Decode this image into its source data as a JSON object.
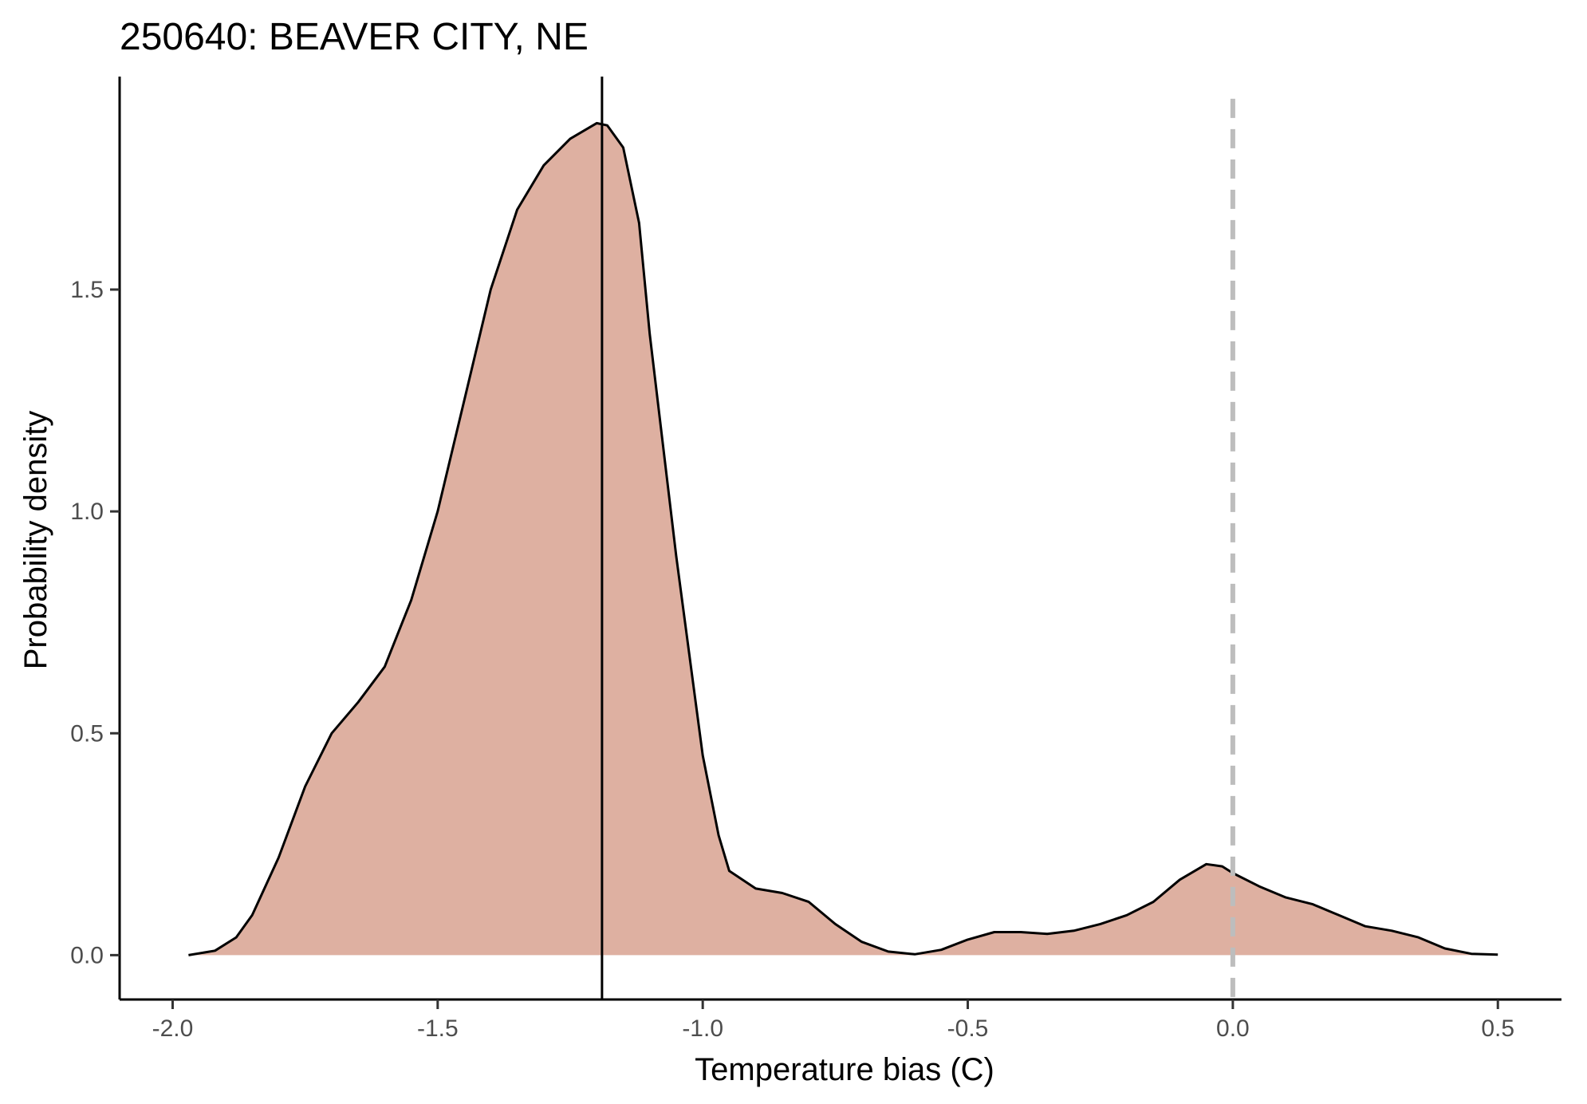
{
  "chart_data": {
    "type": "area",
    "title": "250640: BEAVER CITY, NE",
    "xlabel": "Temperature bias (C)",
    "ylabel": "Probability density",
    "xlim": [
      -2.1,
      0.62
    ],
    "ylim": [
      -0.1,
      1.98
    ],
    "x_ticks": [
      -2.0,
      -1.5,
      -1.0,
      -0.5,
      0.0,
      0.5
    ],
    "x_tick_labels": [
      "-2.0",
      "-1.5",
      "-1.0",
      "-0.5",
      "0.0",
      "0.5"
    ],
    "y_ticks": [
      0.0,
      0.5,
      1.0,
      1.5
    ],
    "y_tick_labels": [
      "0.0",
      "0.5",
      "1.0",
      "1.5"
    ],
    "grid": false,
    "fill_color": "#deb0a1",
    "line_color": "#000000",
    "series": [
      {
        "x": [
          -1.97,
          -1.92,
          -1.88,
          -1.85,
          -1.8,
          -1.75,
          -1.7,
          -1.65,
          -1.6,
          -1.55,
          -1.5,
          -1.45,
          -1.4,
          -1.35,
          -1.3,
          -1.25,
          -1.2,
          -1.18,
          -1.15,
          -1.12,
          -1.1,
          -1.05,
          -1.0,
          -0.97,
          -0.95,
          -0.9,
          -0.85,
          -0.8,
          -0.75,
          -0.7,
          -0.65,
          -0.6,
          -0.55,
          -0.5,
          -0.45,
          -0.4,
          -0.35,
          -0.3,
          -0.25,
          -0.2,
          -0.15,
          -0.1,
          -0.05,
          -0.02,
          0.0,
          0.05,
          0.1,
          0.15,
          0.2,
          0.25,
          0.3,
          0.35,
          0.4,
          0.45,
          0.5
        ],
        "y": [
          0.0,
          0.01,
          0.04,
          0.09,
          0.22,
          0.38,
          0.5,
          0.57,
          0.65,
          0.8,
          1.0,
          1.25,
          1.5,
          1.68,
          1.78,
          1.84,
          1.875,
          1.87,
          1.82,
          1.65,
          1.4,
          0.9,
          0.45,
          0.27,
          0.19,
          0.15,
          0.14,
          0.12,
          0.07,
          0.03,
          0.008,
          0.002,
          0.012,
          0.035,
          0.052,
          0.052,
          0.048,
          0.055,
          0.07,
          0.09,
          0.12,
          0.17,
          0.205,
          0.2,
          0.185,
          0.155,
          0.13,
          0.115,
          0.09,
          0.065,
          0.055,
          0.04,
          0.015,
          0.003,
          0.001
        ]
      }
    ],
    "reference_lines": [
      {
        "orientation": "vertical",
        "x": -1.19,
        "style": "solid",
        "color": "#000000"
      },
      {
        "orientation": "vertical",
        "x": 0.0,
        "style": "dashed",
        "color": "#bdbdbd"
      }
    ]
  }
}
